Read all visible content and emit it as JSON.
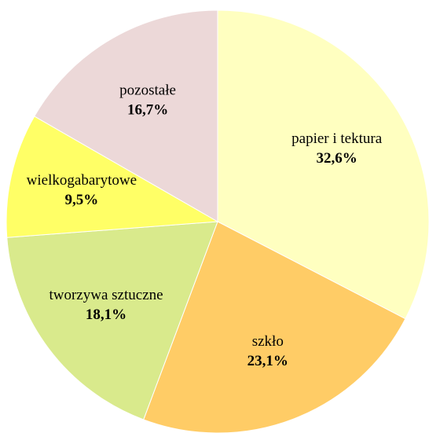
{
  "chart_data": {
    "type": "pie",
    "categories": [
      "papier i tektura",
      "szkło",
      "tworzywa sztuczne",
      "wielkogabarytowe",
      "pozostałe"
    ],
    "values": [
      32.6,
      23.1,
      18.1,
      9.5,
      16.7
    ],
    "value_labels": [
      "32,6%",
      "23,1%",
      "18,1%",
      "9,5%",
      "16,7%"
    ],
    "colors": [
      "#ffffc0",
      "#ffcc66",
      "#d9ea8c",
      "#ffff66",
      "#ecd8d8"
    ]
  }
}
